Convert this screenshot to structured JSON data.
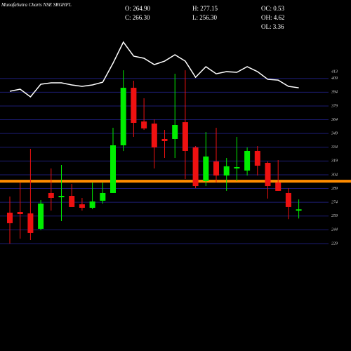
{
  "chart_data": {
    "type": "candlestick",
    "title": "MunafaSutra Charts NSE SRGHFL",
    "info": [
      "O: 264.90",
      "H: 277.15",
      "OC: 0.53",
      "C: 266.30",
      "L: 256.30",
      "OH: 4.62",
      "OL: 3.36"
    ],
    "line_label": "413",
    "ylim": [
      111.9,
      494.5
    ],
    "yticks": [
      229,
      244,
      259,
      274,
      289,
      304,
      319,
      334,
      349,
      364,
      379,
      394,
      409
    ],
    "grid": true,
    "grid_color": "#1c1c72",
    "up_color": "#00ee00",
    "down_color": "#ee1111",
    "hline": {
      "value": 297,
      "color": "#ff8c00"
    },
    "open": [
      262.7,
      263.4,
      261.9,
      245.1,
      284.1,
      279.5,
      281.0,
      271.8,
      268.0,
      275.7,
      284.1,
      336.1,
      398.8,
      362.1,
      359.8,
      343.0,
      343.0,
      361.3,
      333.8,
      297.1,
      318.5,
      303.2,
      310.9,
      308.6,
      330.0,
      317.0,
      295.6,
      284.1,
      264.9
    ],
    "high": [
      280.3,
      295.6,
      332.3,
      276.4,
      310.9,
      314.7,
      294.0,
      278.7,
      295.6,
      295.6,
      355.2,
      417.9,
      406.5,
      387.4,
      364.4,
      352.9,
      414.1,
      417.9,
      335.3,
      350.6,
      355.2,
      322.3,
      345.3,
      333.8,
      335.3,
      318.5,
      320.0,
      289.4,
      277.15
    ],
    "low": [
      229.0,
      234.4,
      232.8,
      243.5,
      265.0,
      253.5,
      268.8,
      265.0,
      266.5,
      272.6,
      284.1,
      329.9,
      345.3,
      352.9,
      310.9,
      322.3,
      322.3,
      299.4,
      289.4,
      291.7,
      295.6,
      286.4,
      297.1,
      303.2,
      303.2,
      278.0,
      286.4,
      255.6,
      256.3
    ],
    "close": [
      251.2,
      261.1,
      240.5,
      272.6,
      278.7,
      281.0,
      268.8,
      268.0,
      274.9,
      284.1,
      336.1,
      398.8,
      360.6,
      354.5,
      333.8,
      340.7,
      358.3,
      330.0,
      291.7,
      323.9,
      303.2,
      313.2,
      312.4,
      330.0,
      313.9,
      291.7,
      286.4,
      268.8,
      266.3
    ],
    "line": {
      "color": "#ffffff",
      "values": [
        395.0,
        397.3,
        388.9,
        402.7,
        404.2,
        404.2,
        401.9,
        400.4,
        401.9,
        404.9,
        425.6,
        448.6,
        433.3,
        431.0,
        424.1,
        427.9,
        434.8,
        427.9,
        410.3,
        421.8,
        414.1,
        416.4,
        415.7,
        421.8,
        416.4,
        408.0,
        407.2,
        400.4,
        398.8
      ]
    }
  }
}
